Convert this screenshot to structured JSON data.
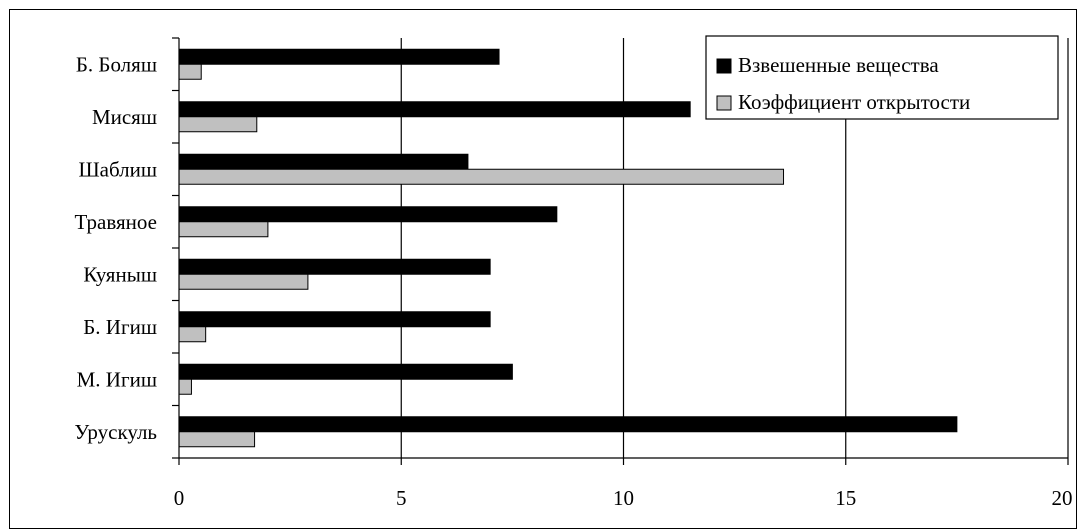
{
  "chart_data": {
    "type": "bar",
    "orientation": "horizontal",
    "categories": [
      "Б. Боляш",
      "Мисяш",
      "Шаблиш",
      "Травяное",
      "Куяныш",
      "Б. Игиш",
      "М. Игиш",
      "Урускуль"
    ],
    "series": [
      {
        "name": "Взвешенные вещества",
        "color": "#000000",
        "values": [
          7.2,
          11.5,
          6.5,
          8.5,
          7.0,
          7.0,
          7.5,
          17.5
        ]
      },
      {
        "name": "Коэффициент открытости",
        "color": "#c0c0c0",
        "values": [
          0.5,
          1.75,
          13.6,
          2.0,
          2.9,
          0.6,
          0.28,
          1.7
        ]
      }
    ],
    "xlim": [
      0,
      20
    ],
    "xticks": [
      "0",
      "5",
      "10",
      "15",
      "20"
    ],
    "grid": "vertical",
    "legend": "top-right"
  }
}
